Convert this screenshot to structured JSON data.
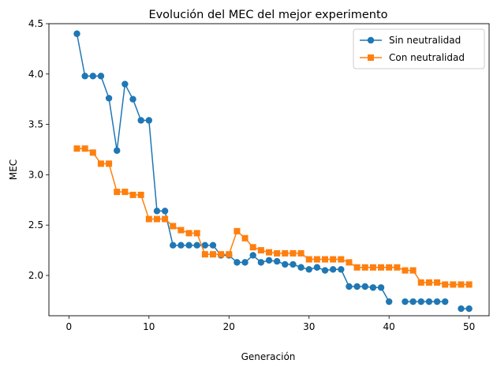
{
  "chart_data": {
    "type": "line",
    "title": "Evolución del MEC del mejor experimento",
    "xlabel": "Generación",
    "ylabel": "MEC",
    "xlim": [
      -2.5,
      52.5
    ],
    "ylim": [
      1.6,
      4.5
    ],
    "xticks": [
      0,
      10,
      20,
      30,
      40,
      50
    ],
    "yticks": [
      2.0,
      2.5,
      3.0,
      3.5,
      4.0,
      4.5
    ],
    "ytick_labels": [
      "2.0",
      "2.5",
      "3.0",
      "3.5",
      "4.0",
      "4.5"
    ],
    "grid": false,
    "legend_position": "top-right",
    "series": [
      {
        "name": "Sin neutralidad",
        "color": "#1f77b4",
        "marker": "circle",
        "x": [
          1,
          2,
          3,
          4,
          5,
          6,
          7,
          8,
          9,
          10,
          11,
          12,
          13,
          14,
          15,
          16,
          17,
          18,
          19,
          20,
          21,
          22,
          23,
          24,
          25,
          26,
          27,
          28,
          29,
          30,
          31,
          32,
          33,
          34,
          35,
          36,
          37,
          38,
          39,
          40,
          41,
          42,
          43,
          44,
          45,
          46,
          47,
          48,
          49,
          50
        ],
        "y": [
          4.4,
          3.98,
          3.98,
          3.98,
          3.76,
          3.24,
          3.9,
          3.75,
          3.54,
          3.54,
          2.64,
          2.64,
          2.3,
          2.3,
          2.3,
          2.3,
          2.3,
          2.3,
          2.2,
          2.2,
          2.13,
          2.13,
          2.2,
          2.13,
          2.15,
          2.14,
          2.11,
          2.11,
          2.08,
          2.06,
          2.08,
          2.05,
          2.06,
          2.06,
          1.89,
          1.89,
          1.89,
          1.88,
          1.88,
          1.74,
          null,
          1.74,
          1.74,
          1.74,
          1.74,
          1.74,
          1.74,
          null,
          1.67,
          1.67
        ]
      },
      {
        "name": "Con neutralidad",
        "color": "#ff7f0e",
        "marker": "square",
        "x": [
          1,
          2,
          3,
          4,
          5,
          6,
          7,
          8,
          9,
          10,
          11,
          12,
          13,
          14,
          15,
          16,
          17,
          18,
          19,
          20,
          21,
          22,
          23,
          24,
          25,
          26,
          27,
          28,
          29,
          30,
          31,
          32,
          33,
          34,
          35,
          36,
          37,
          38,
          39,
          40,
          41,
          42,
          43,
          44,
          45,
          46,
          47,
          48,
          49,
          50
        ],
        "y": [
          3.26,
          3.26,
          3.22,
          3.11,
          3.11,
          2.83,
          2.83,
          2.8,
          2.8,
          2.56,
          2.56,
          2.56,
          2.49,
          2.45,
          2.42,
          2.42,
          2.21,
          2.21,
          2.21,
          2.21,
          2.44,
          2.37,
          2.28,
          2.25,
          2.23,
          2.22,
          2.22,
          2.22,
          2.22,
          2.16,
          2.16,
          2.16,
          2.16,
          2.16,
          2.13,
          2.08,
          2.08,
          2.08,
          2.08,
          2.08,
          2.08,
          2.05,
          2.05,
          1.93,
          1.93,
          1.93,
          1.91,
          1.91,
          1.91,
          1.91
        ]
      }
    ]
  }
}
